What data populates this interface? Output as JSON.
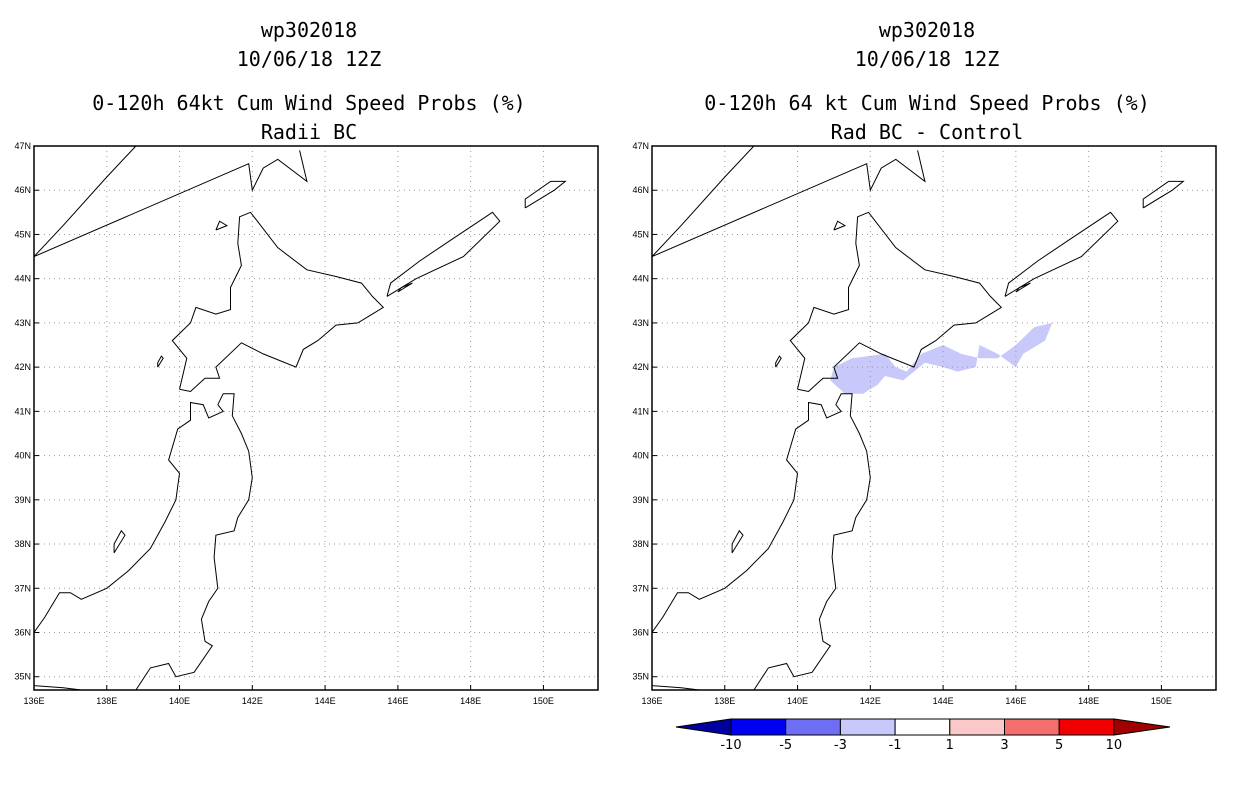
{
  "left_panel": {
    "storm_id": "wp302018",
    "datetime": "10/06/18 12Z",
    "product": "0-120h 64kt Cum Wind Speed Probs (%)",
    "subtitle": "Radii BC"
  },
  "right_panel": {
    "storm_id": "wp302018",
    "datetime": "10/06/18 12Z",
    "product": "0-120h 64 kt Cum Wind Speed Probs (%)",
    "subtitle": "Rad BC - Control"
  },
  "chart_data": [
    {
      "type": "heatmap",
      "title": "0-120h 64kt Cum Wind Speed Probs (%) Radii BC",
      "x_ticks": [
        "136E",
        "138E",
        "140E",
        "142E",
        "144E",
        "146E",
        "148E",
        "150E"
      ],
      "y_ticks": [
        "35N",
        "36N",
        "37N",
        "38N",
        "39N",
        "40N",
        "41N",
        "42N",
        "43N",
        "44N",
        "45N",
        "46N",
        "47N"
      ],
      "xlim": [
        136,
        151.5
      ],
      "ylim": [
        34.7,
        47
      ],
      "grid": true,
      "shaded_regions": []
    },
    {
      "type": "heatmap",
      "title": "0-120h 64 kt Cum Wind Speed Probs (%) Rad BC - Control",
      "x_ticks": [
        "136E",
        "138E",
        "140E",
        "142E",
        "144E",
        "146E",
        "148E",
        "150E"
      ],
      "y_ticks": [
        "35N",
        "36N",
        "37N",
        "38N",
        "39N",
        "40N",
        "41N",
        "42N",
        "43N",
        "44N",
        "45N",
        "46N",
        "47N"
      ],
      "xlim": [
        136,
        151.5
      ],
      "ylim": [
        34.7,
        47
      ],
      "grid": true,
      "shaded_regions": [
        {
          "category": "-3 to -1",
          "color": "#c8c8fa",
          "polygon_lon_lat": [
            [
              141.0,
              42.0
            ],
            [
              141.5,
              42.2
            ],
            [
              142.4,
              42.3
            ],
            [
              142.7,
              42.0
            ],
            [
              143.0,
              41.9
            ],
            [
              143.4,
              42.3
            ],
            [
              144.0,
              42.5
            ],
            [
              144.5,
              42.3
            ],
            [
              145.0,
              42.2
            ],
            [
              145.5,
              42.2
            ],
            [
              146.0,
              42.5
            ],
            [
              146.5,
              42.9
            ],
            [
              147.0,
              43.0
            ],
            [
              146.8,
              42.6
            ],
            [
              146.2,
              42.3
            ],
            [
              146.0,
              42.0
            ],
            [
              145.5,
              42.3
            ],
            [
              145.0,
              42.5
            ],
            [
              144.9,
              42.0
            ],
            [
              144.4,
              41.9
            ],
            [
              144.0,
              42.0
            ],
            [
              143.5,
              42.1
            ],
            [
              142.9,
              41.7
            ],
            [
              142.4,
              41.8
            ],
            [
              142.2,
              41.6
            ],
            [
              141.8,
              41.4
            ],
            [
              141.3,
              41.4
            ],
            [
              140.9,
              41.7
            ]
          ]
        }
      ]
    }
  ],
  "colorbar": {
    "labels": [
      "-10",
      "-5",
      "-3",
      "-1",
      "1",
      "3",
      "5",
      "10"
    ],
    "colors": [
      "#0000a0",
      "#0000f0",
      "#6e6ef5",
      "#c8c8fa",
      "#ffffff",
      "#fac8c8",
      "#f56e6e",
      "#f00000",
      "#a00000"
    ]
  }
}
